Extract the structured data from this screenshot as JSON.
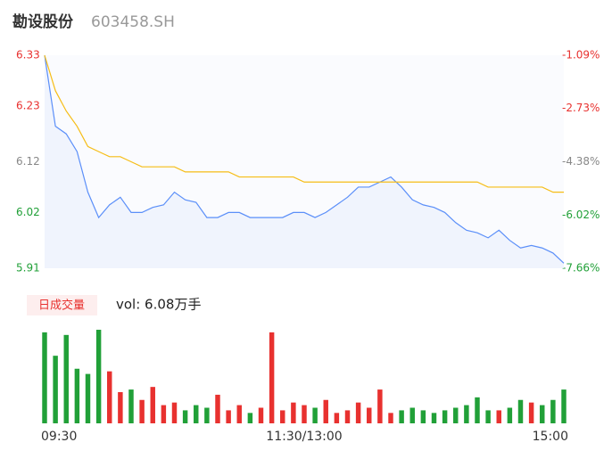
{
  "chart_data": {
    "type": "intraday",
    "title": "勘设股份",
    "subtitle": "603458.SH",
    "categories": [
      "09:30",
      null,
      null,
      null,
      null,
      null,
      null,
      null,
      null,
      null,
      null,
      null,
      null,
      null,
      null,
      null,
      null,
      null,
      null,
      null,
      null,
      null,
      null,
      null,
      "11:30/13:00",
      null,
      null,
      null,
      null,
      null,
      null,
      null,
      null,
      null,
      null,
      null,
      null,
      null,
      null,
      null,
      null,
      null,
      null,
      null,
      null,
      null,
      null,
      null,
      "15:00"
    ],
    "series": [
      {
        "name": "price",
        "color": "#5b8ff9",
        "values": [
          6.33,
          6.19,
          6.175,
          6.14,
          6.06,
          6.01,
          6.035,
          6.05,
          6.02,
          6.02,
          6.03,
          6.035,
          6.06,
          6.045,
          6.04,
          6.01,
          6.01,
          6.02,
          6.02,
          6.01,
          6.01,
          6.01,
          6.01,
          6.02,
          6.02,
          6.01,
          6.02,
          6.035,
          6.05,
          6.07,
          6.07,
          6.08,
          6.09,
          6.07,
          6.045,
          6.035,
          6.03,
          6.02,
          6.0,
          5.985,
          5.98,
          5.97,
          5.985,
          5.965,
          5.95,
          5.955,
          5.95,
          5.94,
          5.92
        ]
      },
      {
        "name": "average",
        "color": "#f6bd16",
        "values": [
          6.33,
          6.26,
          6.22,
          6.19,
          6.15,
          6.14,
          6.13,
          6.13,
          6.12,
          6.11,
          6.11,
          6.11,
          6.11,
          6.1,
          6.1,
          6.1,
          6.1,
          6.1,
          6.09,
          6.09,
          6.09,
          6.09,
          6.09,
          6.09,
          6.08,
          6.08,
          6.08,
          6.08,
          6.08,
          6.08,
          6.08,
          6.08,
          6.08,
          6.08,
          6.08,
          6.08,
          6.08,
          6.08,
          6.08,
          6.08,
          6.08,
          6.07,
          6.07,
          6.07,
          6.07,
          6.07,
          6.07,
          6.06,
          6.06
        ]
      }
    ],
    "ylim": [
      5.91,
      6.33
    ],
    "yticks": [
      6.33,
      6.23,
      6.12,
      6.02,
      5.91
    ],
    "y2lim": [
      -7.66,
      -1.09
    ],
    "y2ticks": [
      {
        "value": -1.09,
        "label": "-1.09%"
      },
      {
        "value": -2.73,
        "label": "-2.73%"
      },
      {
        "value": -4.38,
        "label": "-4.38%"
      },
      {
        "value": -6.02,
        "label": "-6.02%"
      },
      {
        "value": -7.66,
        "label": "-7.66%"
      }
    ],
    "up_color": "#e8312f",
    "down_color": "#21a038",
    "flat_color": "#888888",
    "volume": {
      "label": "日成交量",
      "summary": "vol: 6.08万手",
      "values": [
        3500,
        2600,
        3400,
        2100,
        1900,
        3600,
        2000,
        1200,
        1300,
        900,
        1400,
        700,
        800,
        500,
        700,
        600,
        1100,
        500,
        700,
        400,
        600,
        3500,
        500,
        800,
        700,
        600,
        900,
        400,
        500,
        800,
        600,
        1300,
        400,
        500,
        600,
        500,
        400,
        500,
        600,
        700,
        1000,
        500,
        500,
        600,
        900,
        800,
        700,
        900,
        1300
      ]
    }
  }
}
